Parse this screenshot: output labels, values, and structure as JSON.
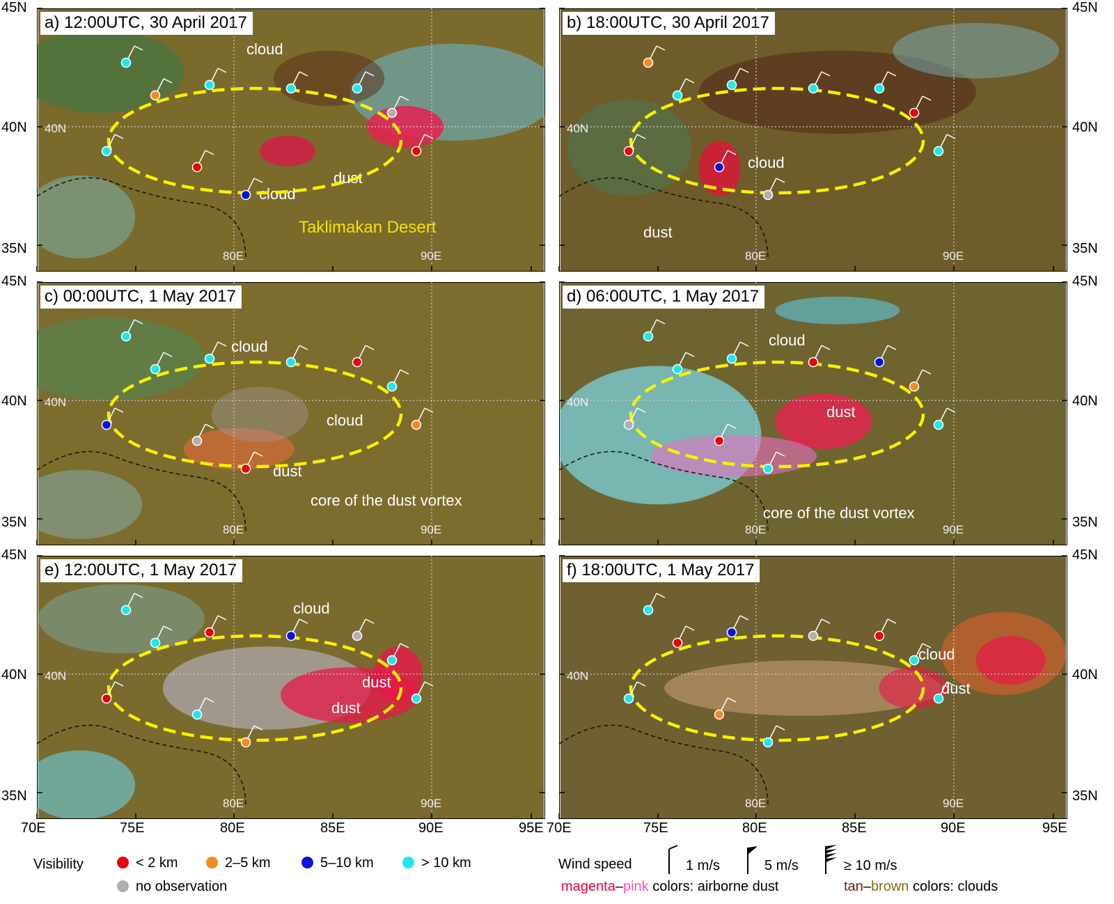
{
  "panels": [
    {
      "id": "a",
      "title": "a) 12:00UTC, 30 April 2017",
      "labels": [
        "cloud",
        "cloud",
        "dust",
        "Taklimakan Desert"
      ]
    },
    {
      "id": "b",
      "title": "b) 18:00UTC, 30 April 2017",
      "labels": [
        "cloud",
        "dust"
      ]
    },
    {
      "id": "c",
      "title": "c) 00:00UTC, 1 May 2017",
      "labels": [
        "cloud",
        "cloud",
        "dust",
        "core of the dust vortex"
      ]
    },
    {
      "id": "d",
      "title": "d) 06:00UTC, 1 May 2017",
      "labels": [
        "cloud",
        "dust",
        "core of the dust vortex"
      ]
    },
    {
      "id": "e",
      "title": "e) 12:00UTC, 1 May 2017",
      "labels": [
        "cloud",
        "dust",
        "dust"
      ]
    },
    {
      "id": "f",
      "title": "f) 18:00UTC, 1 May 2017",
      "labels": [
        "cloud",
        "dust"
      ]
    }
  ],
  "grid_labels": {
    "lat40": "40N",
    "lon80": "80E",
    "lon90": "90E"
  },
  "lat_ticks": [
    "45N",
    "40N",
    "35N"
  ],
  "lon_ticks": [
    "70E",
    "75E",
    "80E",
    "85E",
    "90E",
    "95E"
  ],
  "legend": {
    "visibility_title": "Visibility",
    "visibility_classes": [
      {
        "label": "< 2 km",
        "color": "#e8000a"
      },
      {
        "label": "2–5 km",
        "color": "#f58a1e"
      },
      {
        "label": "5–10 km",
        "color": "#0a14d8"
      },
      {
        "label": "> 10 km",
        "color": "#1ce8ec"
      },
      {
        "label": "no observation",
        "color": "#b0b0b0"
      }
    ],
    "wind_title": "Wind speed",
    "wind_classes": [
      "1 m/s",
      "5 m/s",
      "≥ 10 m/s"
    ],
    "color_key": {
      "dust_a": "magenta",
      "dash": "–",
      "dust_b": "pink",
      "dust_rest": " colors: airborne dust",
      "cloud_a": "tan",
      "cloud_b": "brown",
      "cloud_rest": " colors: clouds"
    }
  }
}
